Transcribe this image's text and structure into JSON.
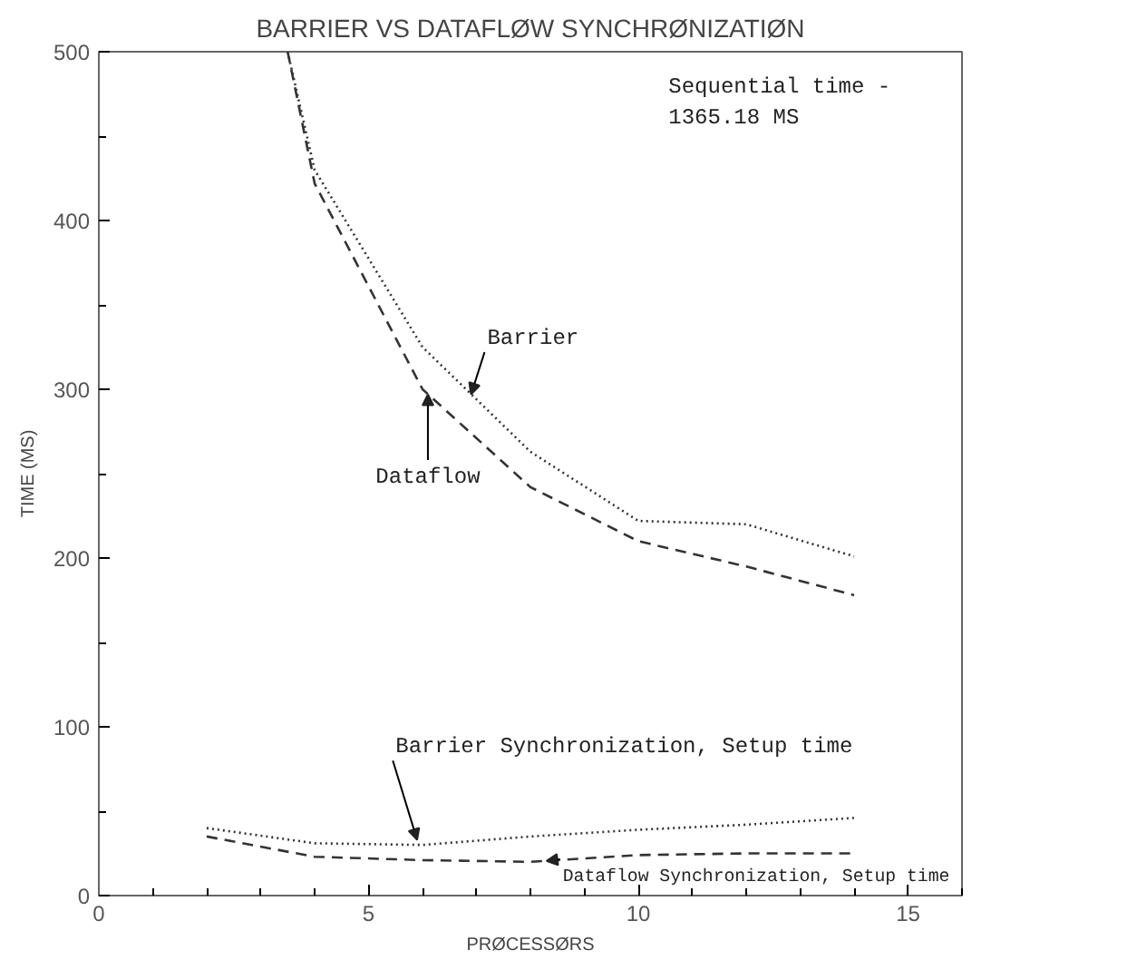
{
  "chart_data": {
    "type": "line",
    "title": "BARRIER VS DATAFLØW SYNCHRØNIZATIØN",
    "xlabel": "PRØCESSØRS",
    "ylabel": "TIME (MS)",
    "xlim": [
      0,
      16
    ],
    "ylim": [
      0,
      500
    ],
    "xticks": [
      0,
      5,
      10,
      15
    ],
    "yticks": [
      0,
      100,
      200,
      300,
      400,
      500
    ],
    "grid": false,
    "marker": "none",
    "series": [
      {
        "color": "#333333",
        "line_style": "dotted",
        "x": [
          3.5,
          4,
          6,
          8,
          10,
          12,
          14
        ],
        "values": [
          500,
          430,
          325,
          263,
          222,
          220,
          201
        ]
      },
      {
        "color": "#333333",
        "line_style": "dashed",
        "x": [
          3.5,
          4,
          6,
          8,
          10,
          12,
          14
        ],
        "values": [
          500,
          422,
          300,
          242,
          210,
          195,
          178
        ]
      },
      {
        "color": "#333333",
        "line_style": "dotted",
        "x": [
          2,
          4,
          6,
          8,
          10,
          12,
          14
        ],
        "values": [
          40,
          31,
          30,
          35,
          39,
          42,
          46
        ]
      },
      {
        "color": "#333333",
        "line_style": "dashed",
        "x": [
          2,
          4,
          6,
          8,
          10,
          12,
          14
        ],
        "values": [
          35,
          23,
          21,
          20,
          24,
          25,
          25
        ]
      }
    ],
    "annotations": [
      {
        "text": "Barrier",
        "x": 6.9,
        "y": 297
      },
      {
        "text": "Dataflow",
        "x": 6.1,
        "y": 297
      },
      {
        "text": "Barrier Synchronization, Setup time",
        "x": 5.9,
        "y": 33
      },
      {
        "text": "Dataflow Synchronization, Setup time",
        "x": 8.3,
        "y": 20.5
      },
      "Sequential time -\n1365.18 MS"
    ]
  }
}
